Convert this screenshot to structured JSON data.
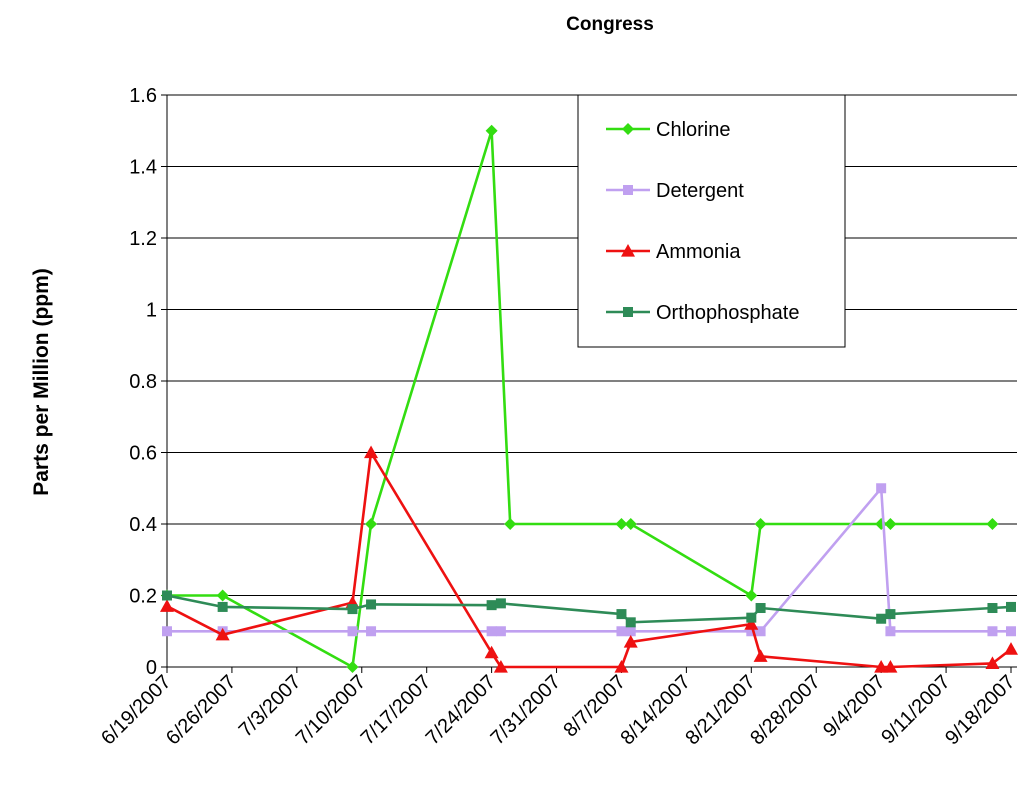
{
  "chart_data": {
    "type": "line",
    "title": "Congress",
    "xlabel": "",
    "ylabel": "Parts per Million (ppm)",
    "x_ticks": [
      "6/19/2007",
      "6/26/2007",
      "7/3/2007",
      "7/10/2007",
      "7/17/2007",
      "7/24/2007",
      "7/31/2007",
      "8/7/2007",
      "8/14/2007",
      "8/21/2007",
      "8/28/2007",
      "9/4/2007",
      "9/11/2007",
      "9/18/2007"
    ],
    "y_ticks": [
      "0",
      "0.2",
      "0.4",
      "0.6",
      "0.8",
      "1",
      "1.2",
      "1.4",
      "1.6"
    ],
    "xlim": [
      "2007-06-19",
      "2007-09-18"
    ],
    "ylim": [
      0,
      1.6
    ],
    "grid": "horizontal",
    "legend_position": "top-right",
    "series": [
      {
        "name": "Chlorine",
        "color": "#33dd11",
        "marker": "diamond",
        "points": [
          {
            "x": "2007-06-19",
            "y": 0.2
          },
          {
            "x": "2007-06-25",
            "y": 0.2
          },
          {
            "x": "2007-07-09",
            "y": 0.0
          },
          {
            "x": "2007-07-11",
            "y": 0.4
          },
          {
            "x": "2007-07-24",
            "y": 1.5
          },
          {
            "x": "2007-07-26",
            "y": 0.4
          },
          {
            "x": "2007-08-07",
            "y": 0.4
          },
          {
            "x": "2007-08-08",
            "y": 0.4
          },
          {
            "x": "2007-08-21",
            "y": 0.2
          },
          {
            "x": "2007-08-22",
            "y": 0.4
          },
          {
            "x": "2007-09-04",
            "y": 0.4
          },
          {
            "x": "2007-09-05",
            "y": 0.4
          },
          {
            "x": "2007-09-16",
            "y": 0.4
          }
        ]
      },
      {
        "name": "Detergent",
        "color": "#c0a0f0",
        "marker": "square",
        "points": [
          {
            "x": "2007-06-19",
            "y": 0.1
          },
          {
            "x": "2007-06-25",
            "y": 0.1
          },
          {
            "x": "2007-07-09",
            "y": 0.1
          },
          {
            "x": "2007-07-11",
            "y": 0.1
          },
          {
            "x": "2007-07-24",
            "y": 0.1
          },
          {
            "x": "2007-07-25",
            "y": 0.1
          },
          {
            "x": "2007-08-07",
            "y": 0.1
          },
          {
            "x": "2007-08-08",
            "y": 0.1
          },
          {
            "x": "2007-08-21",
            "y": 0.1
          },
          {
            "x": "2007-08-22",
            "y": 0.1
          },
          {
            "x": "2007-09-04",
            "y": 0.5
          },
          {
            "x": "2007-09-05",
            "y": 0.1
          },
          {
            "x": "2007-09-16",
            "y": 0.1
          },
          {
            "x": "2007-09-18",
            "y": 0.1
          }
        ]
      },
      {
        "name": "Ammonia",
        "color": "#ee1111",
        "marker": "triangle",
        "points": [
          {
            "x": "2007-06-19",
            "y": 0.17
          },
          {
            "x": "2007-06-25",
            "y": 0.09
          },
          {
            "x": "2007-07-09",
            "y": 0.18
          },
          {
            "x": "2007-07-11",
            "y": 0.6
          },
          {
            "x": "2007-07-24",
            "y": 0.04
          },
          {
            "x": "2007-07-25",
            "y": 0.0
          },
          {
            "x": "2007-08-07",
            "y": 0.0
          },
          {
            "x": "2007-08-08",
            "y": 0.07
          },
          {
            "x": "2007-08-21",
            "y": 0.12
          },
          {
            "x": "2007-08-22",
            "y": 0.03
          },
          {
            "x": "2007-09-04",
            "y": 0.0
          },
          {
            "x": "2007-09-05",
            "y": 0.0
          },
          {
            "x": "2007-09-16",
            "y": 0.01
          },
          {
            "x": "2007-09-18",
            "y": 0.05
          }
        ]
      },
      {
        "name": "Orthophosphate",
        "color": "#2e8b57",
        "marker": "square",
        "points": [
          {
            "x": "2007-06-19",
            "y": 0.2
          },
          {
            "x": "2007-06-25",
            "y": 0.168
          },
          {
            "x": "2007-07-09",
            "y": 0.162
          },
          {
            "x": "2007-07-11",
            "y": 0.175
          },
          {
            "x": "2007-07-24",
            "y": 0.173
          },
          {
            "x": "2007-07-25",
            "y": 0.178
          },
          {
            "x": "2007-08-07",
            "y": 0.148
          },
          {
            "x": "2007-08-08",
            "y": 0.125
          },
          {
            "x": "2007-08-21",
            "y": 0.138
          },
          {
            "x": "2007-08-22",
            "y": 0.165
          },
          {
            "x": "2007-09-04",
            "y": 0.135
          },
          {
            "x": "2007-09-05",
            "y": 0.148
          },
          {
            "x": "2007-09-16",
            "y": 0.165
          },
          {
            "x": "2007-09-18",
            "y": 0.168
          }
        ]
      }
    ]
  }
}
